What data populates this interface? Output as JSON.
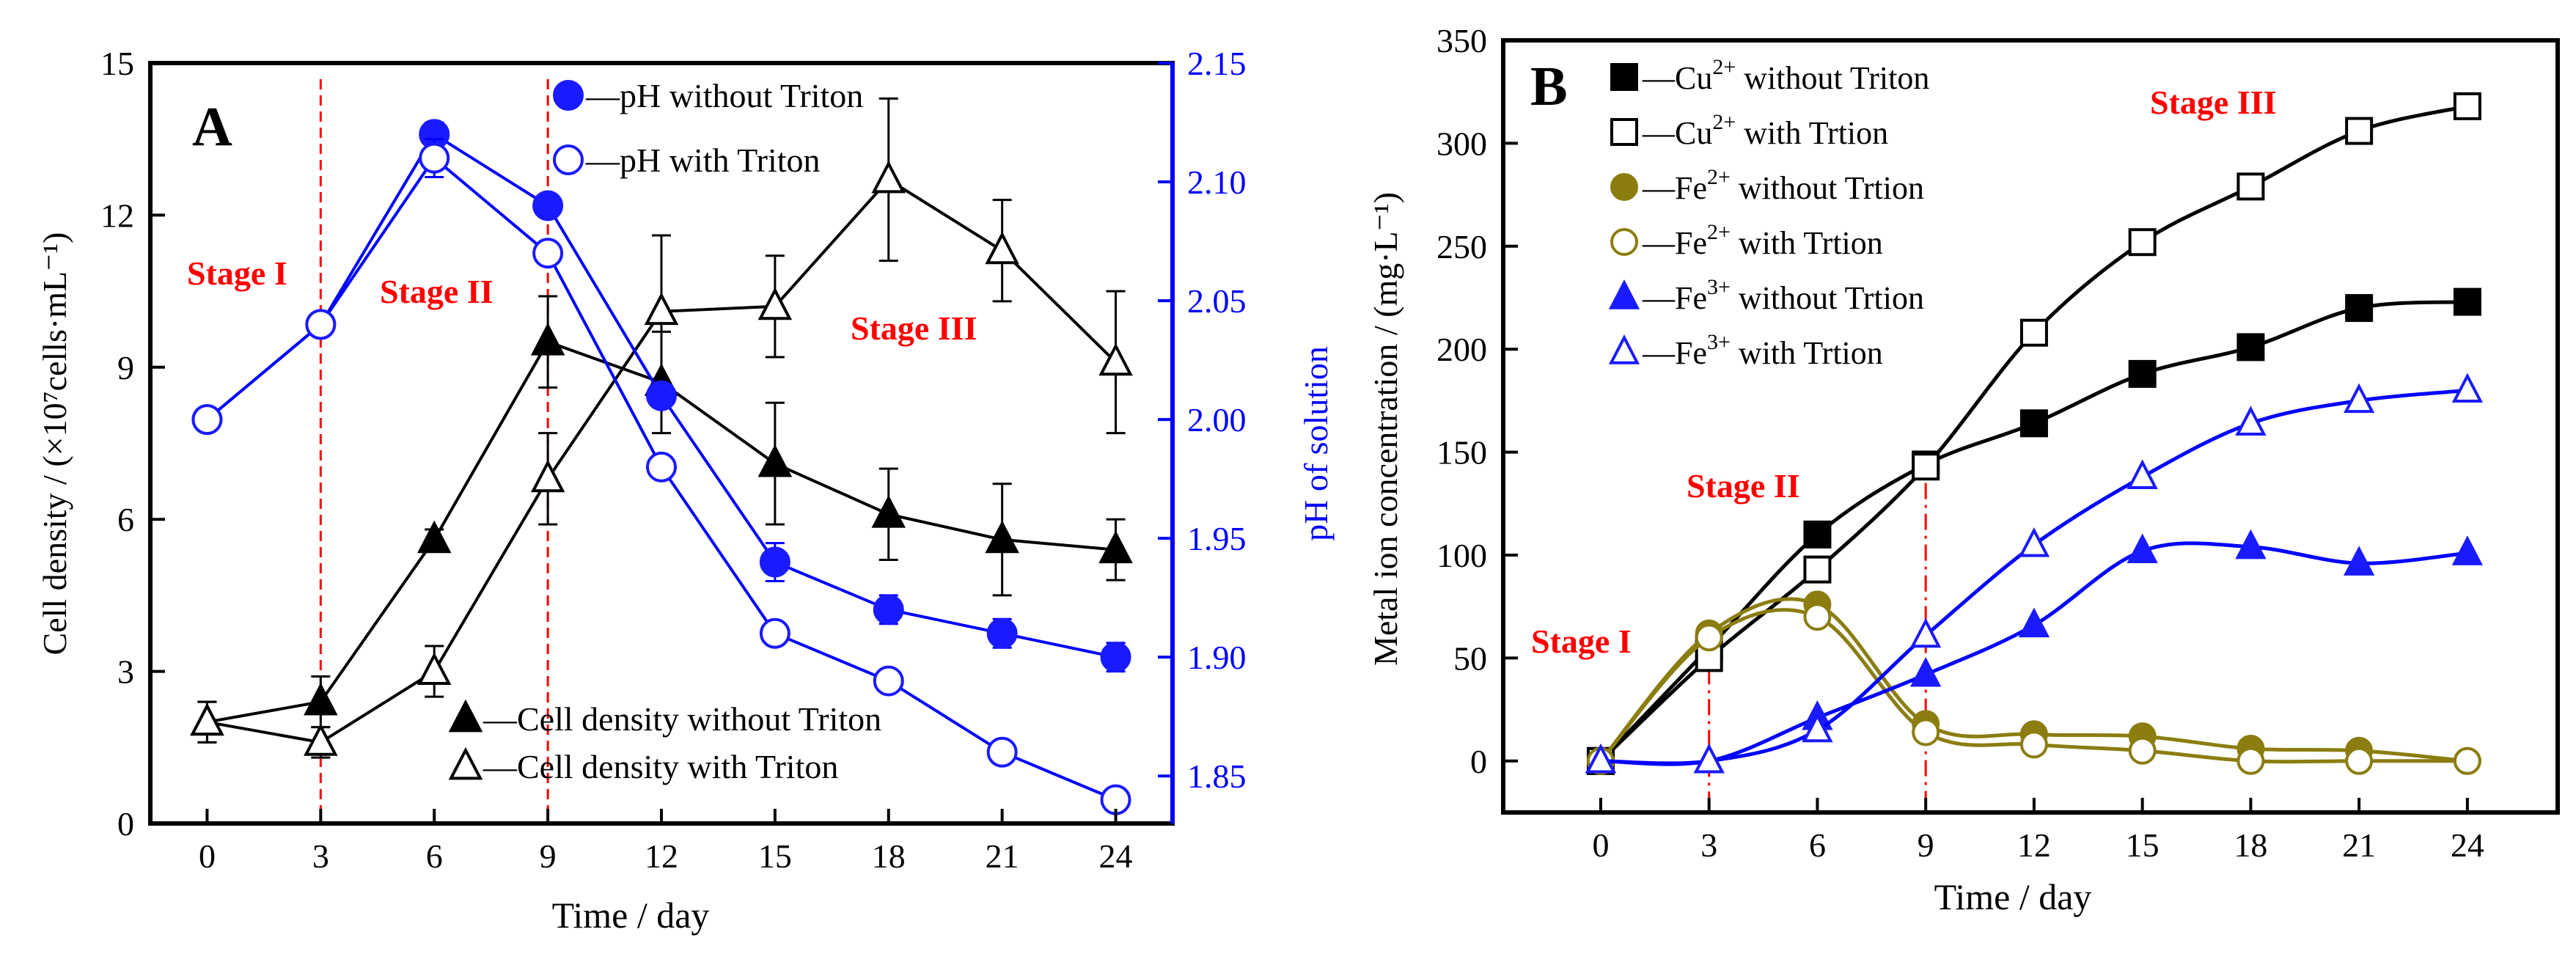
{
  "colors": {
    "black": "#000000",
    "blue": "#0000ff",
    "blue_marker": "#1a1aff",
    "olive": "#8b7d10",
    "red": "#ff0000"
  },
  "chart_data": [
    {
      "type": "line",
      "panel_label": "A",
      "xlabel": "Time / day",
      "ylabel_left": "Cell density / (×10⁷cells·mL⁻¹)",
      "ylabel_right": "pH of solution",
      "x": [
        0,
        3,
        6,
        9,
        12,
        15,
        18,
        21,
        24
      ],
      "xticks": [
        "0",
        "3",
        "6",
        "9",
        "12",
        "15",
        "18",
        "21",
        "24"
      ],
      "xlim": [
        -1.5,
        25.5
      ],
      "ylim_left": [
        0,
        15
      ],
      "yticks_left": [
        "0",
        "3",
        "6",
        "9",
        "12",
        "15"
      ],
      "ylim_right": [
        1.83,
        2.15
      ],
      "yticks_right": [
        "1.85",
        "1.90",
        "1.95",
        "2.00",
        "2.05",
        "2.10",
        "2.15"
      ],
      "series": [
        {
          "name": "Cell density without Triton",
          "legend": "—Cell density without Triton",
          "axis": "left",
          "marker": "filled-triangle",
          "color": "black",
          "values": [
            2.0,
            2.4,
            5.6,
            9.5,
            8.7,
            7.1,
            6.1,
            5.6,
            5.4
          ],
          "errors": [
            0.4,
            0.5,
            0.2,
            0.9,
            1.0,
            1.2,
            0.9,
            1.1,
            0.6
          ]
        },
        {
          "name": "Cell density with Triton",
          "legend": "—Cell density with Triton",
          "axis": "left",
          "marker": "open-triangle",
          "color": "black",
          "values": [
            2.0,
            1.6,
            3.0,
            6.8,
            10.1,
            10.2,
            12.7,
            11.3,
            9.1
          ],
          "errors": [
            0.4,
            0.3,
            0.5,
            0.9,
            1.5,
            1.0,
            1.6,
            1.0,
            1.4
          ]
        },
        {
          "name": "pH without Triton",
          "legend": "—pH without Triton",
          "axis": "right",
          "marker": "filled-circle",
          "color": "blue",
          "values": [
            2.0,
            2.04,
            2.12,
            2.09,
            2.01,
            1.94,
            1.92,
            1.91,
            1.9
          ],
          "errors": [
            0.0,
            0.0,
            0.005,
            0.0,
            0.0,
            0.008,
            0.006,
            0.006,
            0.006
          ]
        },
        {
          "name": "pH with Triton",
          "legend": "—pH with Triton",
          "axis": "right",
          "marker": "open-circle",
          "color": "blue",
          "values": [
            2.0,
            2.04,
            2.11,
            2.07,
            1.98,
            1.91,
            1.89,
            1.86,
            1.84
          ],
          "errors": [
            0.0,
            0.0,
            0.008,
            0.0,
            0.0,
            0.0,
            0.0,
            0.0,
            0.0
          ]
        }
      ],
      "stage_lines_x": [
        3,
        9
      ],
      "stage_labels": [
        "Stage I",
        "Stage II",
        "Stage III"
      ]
    },
    {
      "type": "line",
      "panel_label": "B",
      "xlabel": "Time / day",
      "ylabel": "Metal ion concentration / (mg·L⁻¹)",
      "x": [
        0,
        3,
        6,
        9,
        12,
        15,
        18,
        21,
        24
      ],
      "xticks": [
        "0",
        "3",
        "6",
        "9",
        "12",
        "15",
        "18",
        "21",
        "24"
      ],
      "xlim": [
        -2.7,
        26.5
      ],
      "ylim": [
        -25,
        350
      ],
      "yticks": [
        "0",
        "50",
        "100",
        "150",
        "200",
        "250",
        "300",
        "350"
      ],
      "series": [
        {
          "name": "Cu2+ without Triton",
          "ion": "Cu",
          "charge": "2+",
          "legend_suffix": " without Triton",
          "marker": "filled-square",
          "color": "black",
          "values": [
            0,
            55,
            110,
            144,
            164,
            188,
            201,
            220,
            223
          ]
        },
        {
          "name": "Cu2+ with Trtion",
          "ion": "Cu",
          "charge": "2+",
          "legend_suffix": " with Trtion",
          "marker": "open-square",
          "color": "black",
          "values": [
            0,
            50,
            93,
            143,
            208,
            252,
            279,
            306,
            318
          ]
        },
        {
          "name": "Fe2+ without Trtion",
          "ion": "Fe",
          "charge": "2+",
          "legend_suffix": " without Trtion",
          "marker": "filled-circle",
          "color": "olive",
          "values": [
            0,
            62,
            76,
            18,
            13,
            12,
            6,
            5,
            0
          ]
        },
        {
          "name": "Fe2+ with Trtion",
          "ion": "Fe",
          "charge": "2+",
          "legend_suffix": " with Trtion",
          "marker": "open-circle",
          "color": "olive",
          "values": [
            0,
            60,
            70,
            14,
            8,
            5,
            0,
            0,
            0
          ]
        },
        {
          "name": "Fe3+ without Trtion",
          "ion": "Fe",
          "charge": "3+",
          "legend_suffix": " without Trtion",
          "marker": "filled-triangle",
          "color": "blue",
          "values": [
            0,
            0,
            21,
            42,
            66,
            102,
            104,
            96,
            101
          ]
        },
        {
          "name": "Fe3+ with Trtion",
          "ion": "Fe",
          "charge": "3+",
          "legend_suffix": " with Trtion",
          "marker": "open-triangle",
          "color": "blue",
          "values": [
            0,
            0,
            15,
            61,
            105,
            138,
            164,
            175,
            180
          ]
        }
      ],
      "legend_dash": "—",
      "stage_lines_x": [
        3,
        9
      ],
      "stage_labels": [
        "Stage I",
        "Stage II",
        "Stage III"
      ]
    }
  ]
}
